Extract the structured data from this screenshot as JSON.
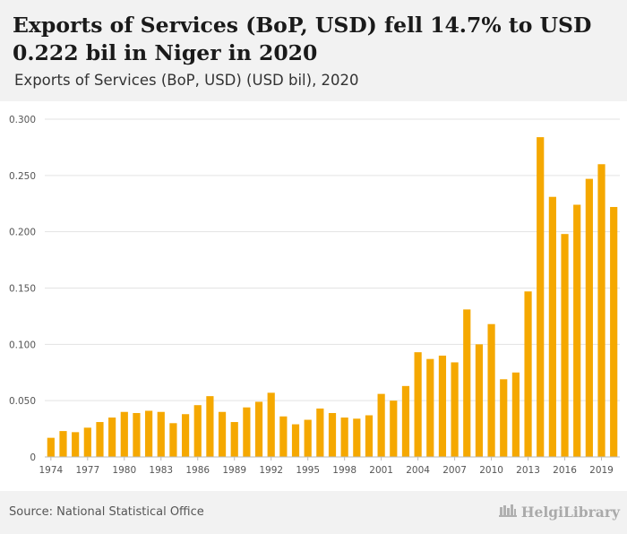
{
  "header": {
    "title": "Exports of Services (BoP, USD) fell 14.7% to USD 0.222 bil in Niger in 2020",
    "subtitle": "Exports of Services (BoP, USD) (USD bil), 2020"
  },
  "footer": {
    "source": "Source: National Statistical Office",
    "brand": "HelgiLibrary"
  },
  "colors": {
    "bar": "#f5a800",
    "grid": "#e3e3e3",
    "axis_text": "#555555"
  },
  "chart_data": {
    "type": "bar",
    "title": "",
    "xlabel": "",
    "ylabel": "",
    "ylim": [
      0,
      0.3
    ],
    "yticks": [
      "0",
      "0.050",
      "0.100",
      "0.150",
      "0.200",
      "0.250",
      "0.300"
    ],
    "xticks": [
      "1974",
      "1977",
      "1980",
      "1983",
      "1986",
      "1989",
      "1992",
      "1995",
      "1998",
      "2001",
      "2004",
      "2007",
      "2010",
      "2013",
      "2016",
      "2019"
    ],
    "grid": true,
    "categories": [
      "1974",
      "1975",
      "1976",
      "1977",
      "1978",
      "1979",
      "1980",
      "1981",
      "1982",
      "1983",
      "1984",
      "1985",
      "1986",
      "1987",
      "1988",
      "1989",
      "1990",
      "1991",
      "1992",
      "1993",
      "1994",
      "1995",
      "1996",
      "1997",
      "1998",
      "1999",
      "2000",
      "2001",
      "2002",
      "2003",
      "2004",
      "2005",
      "2006",
      "2007",
      "2008",
      "2009",
      "2010",
      "2011",
      "2012",
      "2013",
      "2014",
      "2015",
      "2016",
      "2017",
      "2018",
      "2019",
      "2020"
    ],
    "values": [
      0.017,
      0.023,
      0.022,
      0.026,
      0.031,
      0.035,
      0.04,
      0.039,
      0.041,
      0.04,
      0.03,
      0.038,
      0.046,
      0.054,
      0.04,
      0.031,
      0.044,
      0.049,
      0.057,
      0.036,
      0.029,
      0.033,
      0.043,
      0.039,
      0.035,
      0.034,
      0.037,
      0.056,
      0.05,
      0.063,
      0.093,
      0.087,
      0.09,
      0.084,
      0.131,
      0.1,
      0.118,
      0.069,
      0.075,
      0.147,
      0.284,
      0.231,
      0.198,
      0.224,
      0.247,
      0.26,
      0.222
    ]
  }
}
